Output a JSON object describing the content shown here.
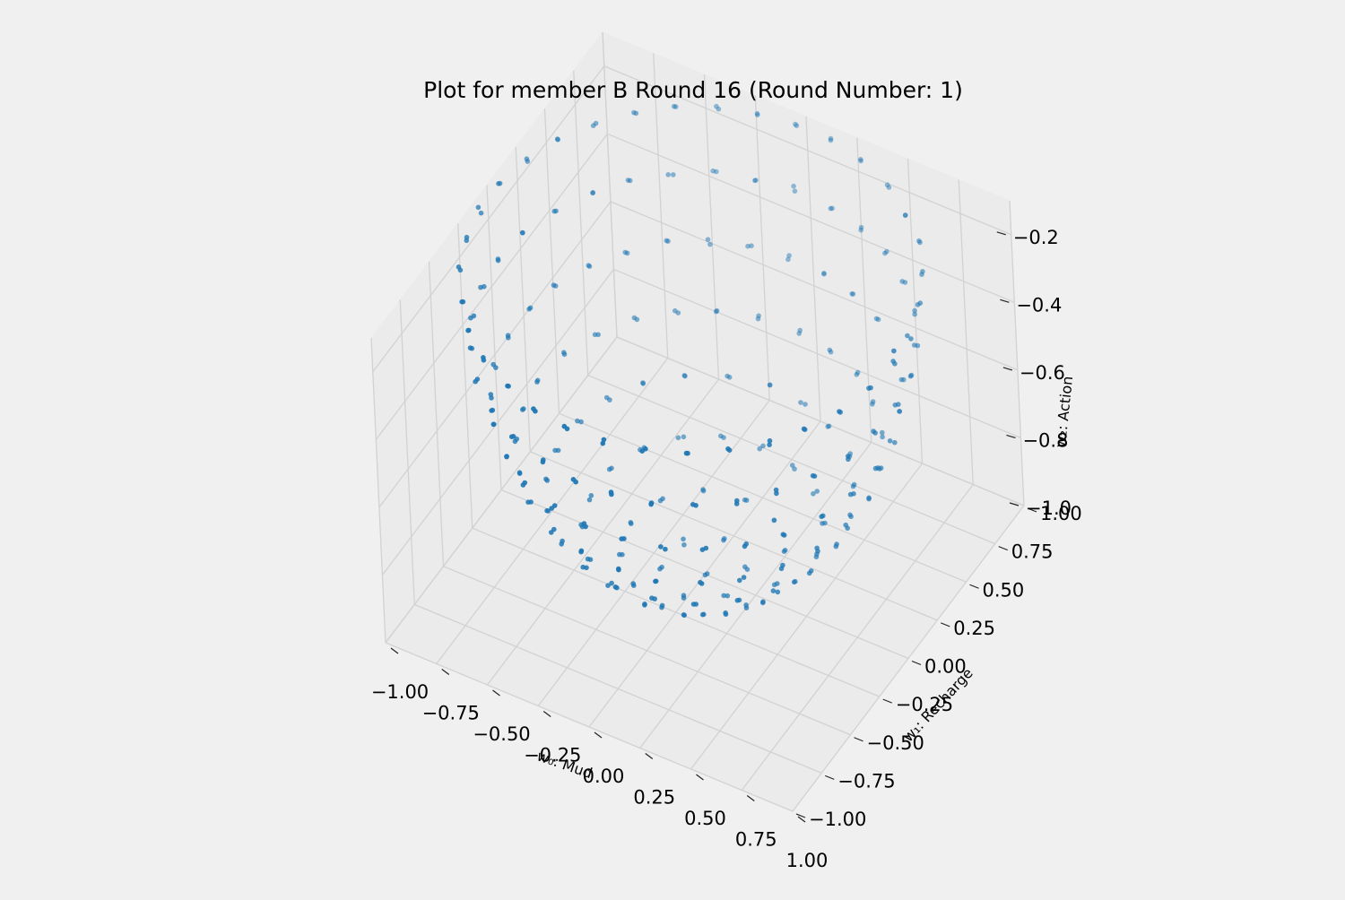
{
  "chart_data": {
    "type": "scatter",
    "projection": "3d",
    "title": "Plot for member B Round 16 (Round Number: 1)",
    "xlabel": "w₀: Mud",
    "ylabel": "w₁: Recharge",
    "zlabel": "w₂: Action",
    "xlim": [
      -1.0,
      1.0
    ],
    "ylim": [
      -1.0,
      1.0
    ],
    "zlim": [
      -1.0,
      -0.1
    ],
    "x_ticks": [
      "−1.00",
      "−0.75",
      "−0.50",
      "−0.25",
      "0.00",
      "0.25",
      "0.50",
      "0.75",
      "1.00"
    ],
    "y_ticks": [
      "−1.00",
      "−0.75",
      "−0.50",
      "−0.25",
      "0.00",
      "0.25",
      "0.50",
      "0.75",
      "1.00"
    ],
    "z_ticks": [
      "−1.0",
      "−0.8",
      "−0.6",
      "−0.4",
      "−0.2"
    ],
    "grid": true,
    "marker_color": "#1f77b4",
    "pane_color": "#ebebeb",
    "background_color": "#f0f0f0",
    "series": [
      {
        "description": "points on the lower unit hemisphere w0^2 + w1^2 + w2^2 = 1 (w2 <= -0.1), sampled on a lattice of polar angle steps (0.18 rad) and azimuth steps",
        "polar_step_rad": 0.18,
        "polar_rings": 8
      }
    ]
  }
}
